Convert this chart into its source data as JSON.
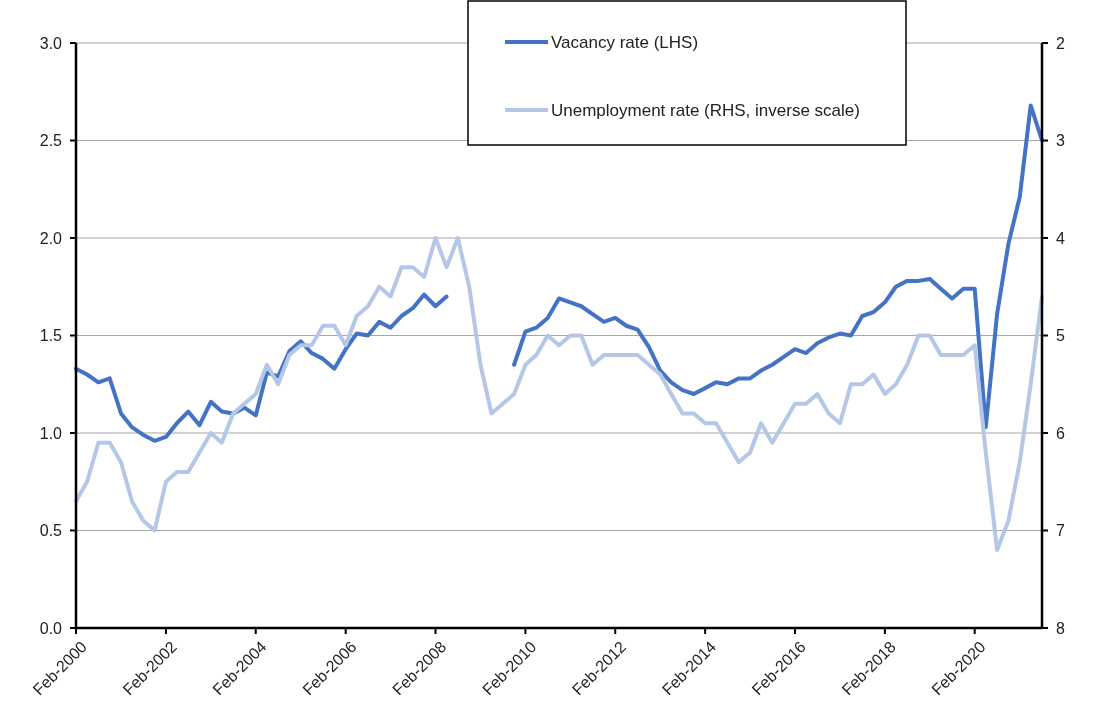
{
  "chart_data": {
    "type": "line",
    "x": [
      "2000-02",
      "2000-05",
      "2000-08",
      "2000-11",
      "2001-02",
      "2001-05",
      "2001-08",
      "2001-11",
      "2002-02",
      "2002-05",
      "2002-08",
      "2002-11",
      "2003-02",
      "2003-05",
      "2003-08",
      "2003-11",
      "2004-02",
      "2004-05",
      "2004-08",
      "2004-11",
      "2005-02",
      "2005-05",
      "2005-08",
      "2005-11",
      "2006-02",
      "2006-05",
      "2006-08",
      "2006-11",
      "2007-02",
      "2007-05",
      "2007-08",
      "2007-11",
      "2008-02",
      "2008-05",
      "2008-08",
      "2008-11",
      "2009-02",
      "2009-05",
      "2009-08",
      "2009-11",
      "2010-02",
      "2010-05",
      "2010-08",
      "2010-11",
      "2011-02",
      "2011-05",
      "2011-08",
      "2011-11",
      "2012-02",
      "2012-05",
      "2012-08",
      "2012-11",
      "2013-02",
      "2013-05",
      "2013-08",
      "2013-11",
      "2014-02",
      "2014-05",
      "2014-08",
      "2014-11",
      "2015-02",
      "2015-05",
      "2015-08",
      "2015-11",
      "2016-02",
      "2016-05",
      "2016-08",
      "2016-11",
      "2017-02",
      "2017-05",
      "2017-08",
      "2017-11",
      "2018-02",
      "2018-05",
      "2018-08",
      "2018-11",
      "2019-02",
      "2019-05",
      "2019-08",
      "2019-11",
      "2020-02",
      "2020-05",
      "2020-08",
      "2020-11",
      "2021-02",
      "2021-05",
      "2021-08"
    ],
    "series": [
      {
        "name": "Vacancy rate (LHS)",
        "color": "#4472c4",
        "values": [
          1.33,
          1.3,
          1.26,
          1.28,
          1.1,
          1.03,
          0.99,
          0.96,
          0.98,
          1.05,
          1.11,
          1.04,
          1.16,
          1.11,
          1.1,
          1.13,
          1.09,
          1.31,
          1.29,
          1.42,
          1.47,
          1.41,
          1.38,
          1.33,
          1.43,
          1.51,
          1.5,
          1.57,
          1.54,
          1.6,
          1.64,
          1.71,
          1.65,
          1.7,
          null,
          null,
          null,
          null,
          null,
          1.35,
          1.52,
          1.54,
          1.59,
          1.69,
          1.67,
          1.65,
          1.61,
          1.57,
          1.59,
          1.55,
          1.53,
          1.44,
          1.32,
          1.26,
          1.22,
          1.2,
          1.23,
          1.26,
          1.25,
          1.28,
          1.28,
          1.32,
          1.35,
          1.39,
          1.43,
          1.41,
          1.46,
          1.49,
          1.51,
          1.5,
          1.6,
          1.62,
          1.67,
          1.75,
          1.78,
          1.78,
          1.79,
          1.74,
          1.69,
          1.74,
          1.74,
          1.03,
          1.61,
          1.97,
          2.21,
          2.68,
          2.5
        ]
      },
      {
        "name": "Unemployment rate (RHS, inverse scale)",
        "color": "#b4c7e7",
        "axis": "y2",
        "values": [
          6.7,
          6.5,
          6.1,
          6.1,
          6.3,
          6.7,
          6.9,
          7.0,
          6.5,
          6.4,
          6.4,
          6.2,
          6.0,
          6.1,
          5.8,
          5.7,
          5.6,
          5.3,
          5.5,
          5.2,
          5.1,
          5.1,
          4.9,
          4.9,
          5.1,
          4.8,
          4.7,
          4.5,
          4.6,
          4.3,
          4.3,
          4.4,
          4.0,
          4.3,
          4.0,
          4.5,
          5.3,
          5.8,
          5.7,
          5.6,
          5.3,
          5.2,
          5.0,
          5.1,
          5.0,
          5.0,
          5.3,
          5.2,
          5.2,
          5.2,
          5.2,
          5.3,
          5.4,
          5.6,
          5.8,
          5.8,
          5.9,
          5.9,
          6.1,
          6.3,
          6.2,
          5.9,
          6.1,
          5.9,
          5.7,
          5.7,
          5.6,
          5.8,
          5.9,
          5.5,
          5.5,
          5.4,
          5.6,
          5.5,
          5.3,
          5.0,
          5.0,
          5.2,
          5.2,
          5.2,
          5.1,
          6.2,
          7.2,
          6.9,
          6.3,
          5.5,
          4.6
        ]
      }
    ],
    "xlim": [
      "2000-02",
      "2021-08"
    ],
    "xticks": [
      {
        "value": "2000-02",
        "label": "Feb-2000"
      },
      {
        "value": "2002-02",
        "label": "Feb-2002"
      },
      {
        "value": "2004-02",
        "label": "Feb-2004"
      },
      {
        "value": "2006-02",
        "label": "Feb-2006"
      },
      {
        "value": "2008-02",
        "label": "Feb-2008"
      },
      {
        "value": "2010-02",
        "label": "Feb-2010"
      },
      {
        "value": "2012-02",
        "label": "Feb-2012"
      },
      {
        "value": "2014-02",
        "label": "Feb-2014"
      },
      {
        "value": "2016-02",
        "label": "Feb-2016"
      },
      {
        "value": "2018-02",
        "label": "Feb-2018"
      },
      {
        "value": "2020-02",
        "label": "Feb-2020"
      }
    ],
    "ylim": [
      0,
      3
    ],
    "yticks": [
      {
        "value": 0,
        "label": "0.0"
      },
      {
        "value": 0.5,
        "label": "0.5"
      },
      {
        "value": 1,
        "label": "1.0"
      },
      {
        "value": 1.5,
        "label": "1.5"
      },
      {
        "value": 2,
        "label": "2.0"
      },
      {
        "value": 2.5,
        "label": "2.5"
      },
      {
        "value": 3,
        "label": "3.0"
      }
    ],
    "y2lim": [
      8,
      2
    ],
    "y2ticks": [
      2,
      3,
      4,
      5,
      6,
      7,
      8
    ],
    "grid": "y",
    "legend": "top",
    "line_style": "solid",
    "marker": "none"
  }
}
